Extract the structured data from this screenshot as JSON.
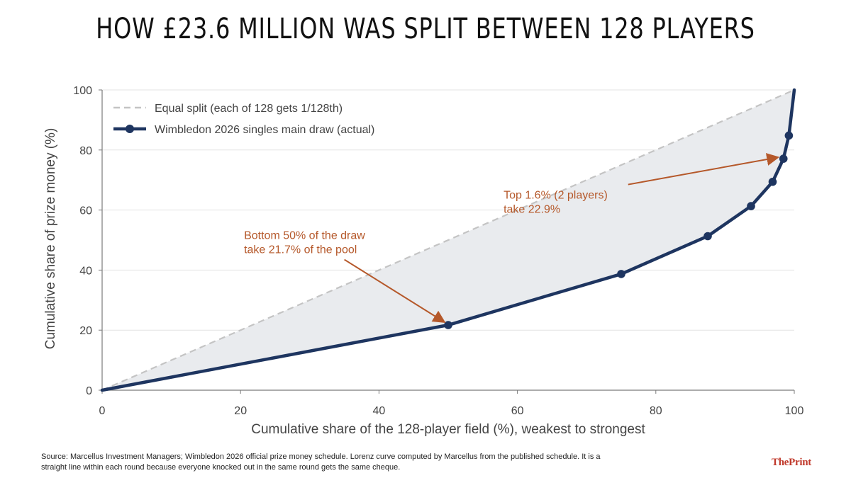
{
  "title": "HOW £23.6 MILLION WAS SPLIT BETWEEN 128 PLAYERS",
  "source": "Source: Marcellus Investment Managers; Wimbledon 2026 official prize money schedule. Lorenz curve computed by Marcellus from the published schedule. It is a straight line within each round because everyone knocked out in the same round gets the same cheque.",
  "logo": {
    "the": "The",
    "print": "Print"
  },
  "colors": {
    "actual": "#1e3560",
    "equal": "#c4c4c4",
    "fill": "#e9ebee",
    "annotation": "#b5582a",
    "grid": "#e3e3e3"
  },
  "chart_data": {
    "type": "line",
    "xlabel": "Cumulative share of the 128-player field (%), weakest to strongest",
    "ylabel": "Cumulative share of prize money (%)",
    "xlim": [
      0,
      100
    ],
    "ylim": [
      0,
      100
    ],
    "xticks": [
      0,
      20,
      40,
      60,
      80,
      100
    ],
    "yticks": [
      0,
      20,
      40,
      60,
      80,
      100
    ],
    "grid": "horizontal",
    "legend_position": "top-left",
    "series": [
      {
        "name": "Equal split (each of 128 gets 1/128th)",
        "style": "dashed",
        "x": [
          0,
          100
        ],
        "y": [
          0,
          100
        ]
      },
      {
        "name": "Wimbledon 2026 singles main draw (actual)",
        "style": "solid-markers",
        "x": [
          0,
          50,
          75,
          87.5,
          93.75,
          96.875,
          98.4375,
          99.21875,
          100
        ],
        "y": [
          0,
          21.7,
          38.7,
          51.3,
          61.3,
          69.4,
          77.1,
          84.8,
          100
        ]
      }
    ],
    "annotations": [
      {
        "lines": [
          "Bottom 50% of the draw",
          "take 21.7% of the pool"
        ],
        "point": [
          50,
          21.7
        ],
        "text_at": [
          20.5,
          50.4
        ],
        "arrow_from": [
          35,
          43.5
        ]
      },
      {
        "lines": [
          "Top 1.6% (2 players)",
          "take 22.9%"
        ],
        "point": [
          98.2,
          77.1
        ],
        "text_at": [
          58,
          63.8
        ],
        "arrow_from": [
          76,
          68.5
        ]
      }
    ]
  }
}
